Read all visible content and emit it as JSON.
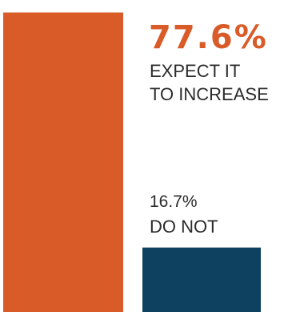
{
  "chart_data": {
    "type": "bar",
    "categories": [
      "EXPECT IT TO INCREASE",
      "DO NOT"
    ],
    "values": [
      77.6,
      16.7
    ],
    "value_labels": [
      "77.6%",
      "16.7%"
    ],
    "caption_lines": [
      [
        "EXPECT IT",
        "TO INCREASE"
      ],
      [
        "DO NOT"
      ]
    ],
    "colors": [
      "#d95b27",
      "#0e4060"
    ],
    "ylim": [
      0,
      80
    ]
  }
}
